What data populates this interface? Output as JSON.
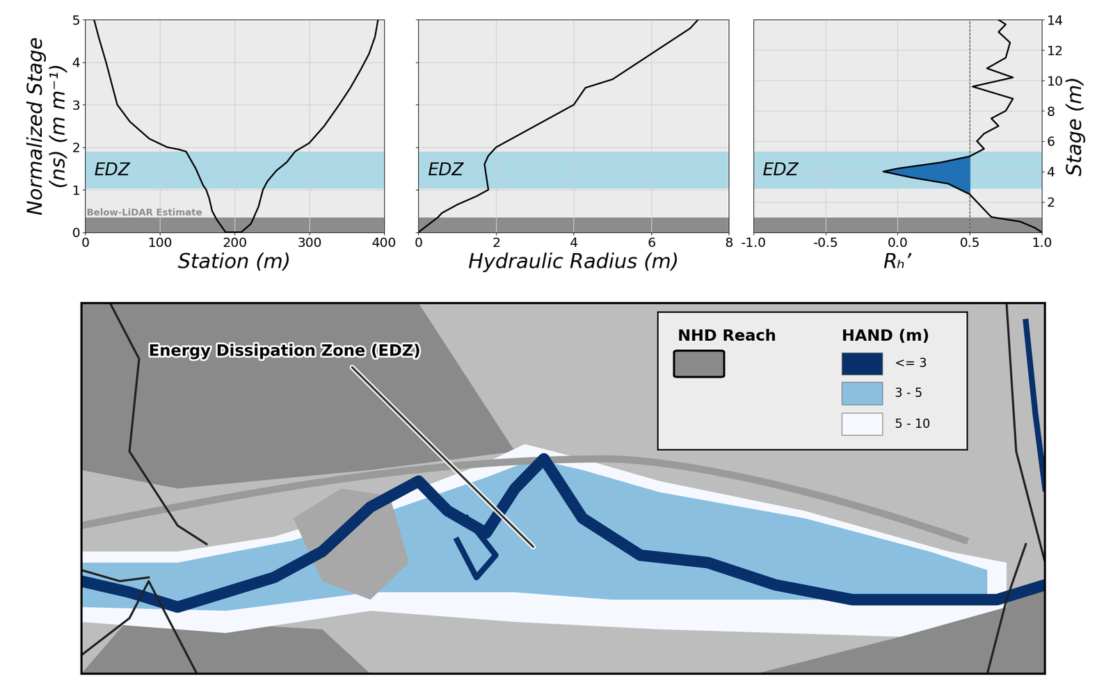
{
  "chart_data": [
    {
      "type": "line",
      "x": [
        12,
        18,
        28,
        43,
        60,
        86,
        110,
        125,
        135,
        148,
        158,
        162,
        166,
        170,
        176,
        188,
        200,
        209,
        222,
        232,
        238,
        244,
        256,
        270,
        281,
        300,
        320,
        340,
        355,
        368,
        380,
        388,
        392
      ],
      "y": [
        5.0,
        4.6,
        4.0,
        3.0,
        2.6,
        2.2,
        2.0,
        1.95,
        1.9,
        1.5,
        1.1,
        1.0,
        0.8,
        0.5,
        0.3,
        0.0,
        0.0,
        0.0,
        0.2,
        0.6,
        1.0,
        1.2,
        1.45,
        1.65,
        1.9,
        2.1,
        2.5,
        3.0,
        3.4,
        3.8,
        4.2,
        4.6,
        5.0
      ],
      "color": "#000000",
      "xlabel": "Station (m)",
      "ylabel": "Normalized Stage\n(ns) (m m⁻¹)",
      "xlim": [
        0,
        400
      ],
      "xticks": [
        0,
        100,
        200,
        300,
        400
      ],
      "ylim": [
        0,
        5
      ],
      "yticks": [
        0,
        1,
        2,
        3,
        4,
        5
      ],
      "grid": true,
      "bands": [
        {
          "label": "EDZ",
          "range": [
            1.02,
            1.9
          ],
          "color": "#add8e6"
        },
        {
          "label": "Below-LiDAR Estimate",
          "range": [
            0,
            0.35
          ],
          "color": "#8c8c8c"
        }
      ]
    },
    {
      "type": "line",
      "x": [
        0.0,
        0.5,
        0.6,
        1.0,
        1.5,
        1.8,
        1.75,
        1.7,
        1.8,
        2.0,
        3.0,
        4.0,
        4.3,
        5.0,
        6.0,
        7.0,
        7.2
      ],
      "y": [
        0.0,
        0.35,
        0.45,
        0.65,
        0.85,
        1.0,
        1.3,
        1.6,
        1.8,
        2.0,
        2.5,
        3.0,
        3.4,
        3.6,
        4.2,
        4.8,
        5.0
      ],
      "color": "#000000",
      "xlabel": "Hydraulic Radius (m)",
      "xlim": [
        0,
        8
      ],
      "xticks": [
        0,
        2,
        4,
        6,
        8
      ],
      "ylim": [
        0,
        5
      ],
      "yticks": [
        0,
        1,
        2,
        3,
        4,
        5
      ],
      "tick_labels": "x",
      "grid": true,
      "bands": [
        {
          "label": "EDZ",
          "range": [
            1.02,
            1.9
          ],
          "color": "#add8e6"
        },
        {
          "range": [
            0,
            0.35
          ],
          "color": "#8c8c8c"
        }
      ]
    },
    {
      "type": "line",
      "x": [
        1.0,
        0.95,
        0.85,
        0.65,
        0.6,
        0.55,
        0.5,
        0.35,
        0.1,
        -0.1,
        0.0,
        0.3,
        0.5,
        0.6,
        0.55,
        0.6,
        0.7,
        0.65,
        0.75,
        0.8,
        0.52,
        0.8,
        0.62,
        0.75,
        0.78,
        0.7,
        0.75,
        0.7
      ],
      "y": [
        0.0,
        0.3,
        0.7,
        1.0,
        1.5,
        2.0,
        2.5,
        3.2,
        3.6,
        4.0,
        4.2,
        4.6,
        5.0,
        5.5,
        6.0,
        6.5,
        7.0,
        7.5,
        8.0,
        8.8,
        9.6,
        10.2,
        10.8,
        11.5,
        12.5,
        13.2,
        13.7,
        14.0
      ],
      "color": "#000000",
      "xlabel": "Rₕ’",
      "ylabel": "Stage (m)",
      "xlim": [
        -1.0,
        1.0
      ],
      "xticks": [
        -1.0,
        -0.5,
        0.0,
        0.5,
        1.0
      ],
      "ylim": [
        0,
        14
      ],
      "yticks": [
        2,
        4,
        6,
        8,
        10,
        12,
        14
      ],
      "grid": true,
      "threshold": 0.5,
      "fill_color": "#2171b5",
      "bands": [
        {
          "label": "EDZ",
          "range": [
            2.86,
            5.32
          ],
          "color": "#add8e6"
        },
        {
          "range": [
            0,
            0.98
          ],
          "color": "#8c8c8c"
        }
      ]
    }
  ],
  "map": {
    "annotation": "Energy Dissipation Zone (EDZ)",
    "legend": {
      "reach": "NHD Reach",
      "title": "HAND (m)",
      "classes": [
        {
          "label": "<= 3",
          "color": "#08306b"
        },
        {
          "label": "3 - 5",
          "color": "#8bbfe0"
        },
        {
          "label": "5 - 10",
          "color": "#f5f9ff"
        }
      ]
    }
  }
}
